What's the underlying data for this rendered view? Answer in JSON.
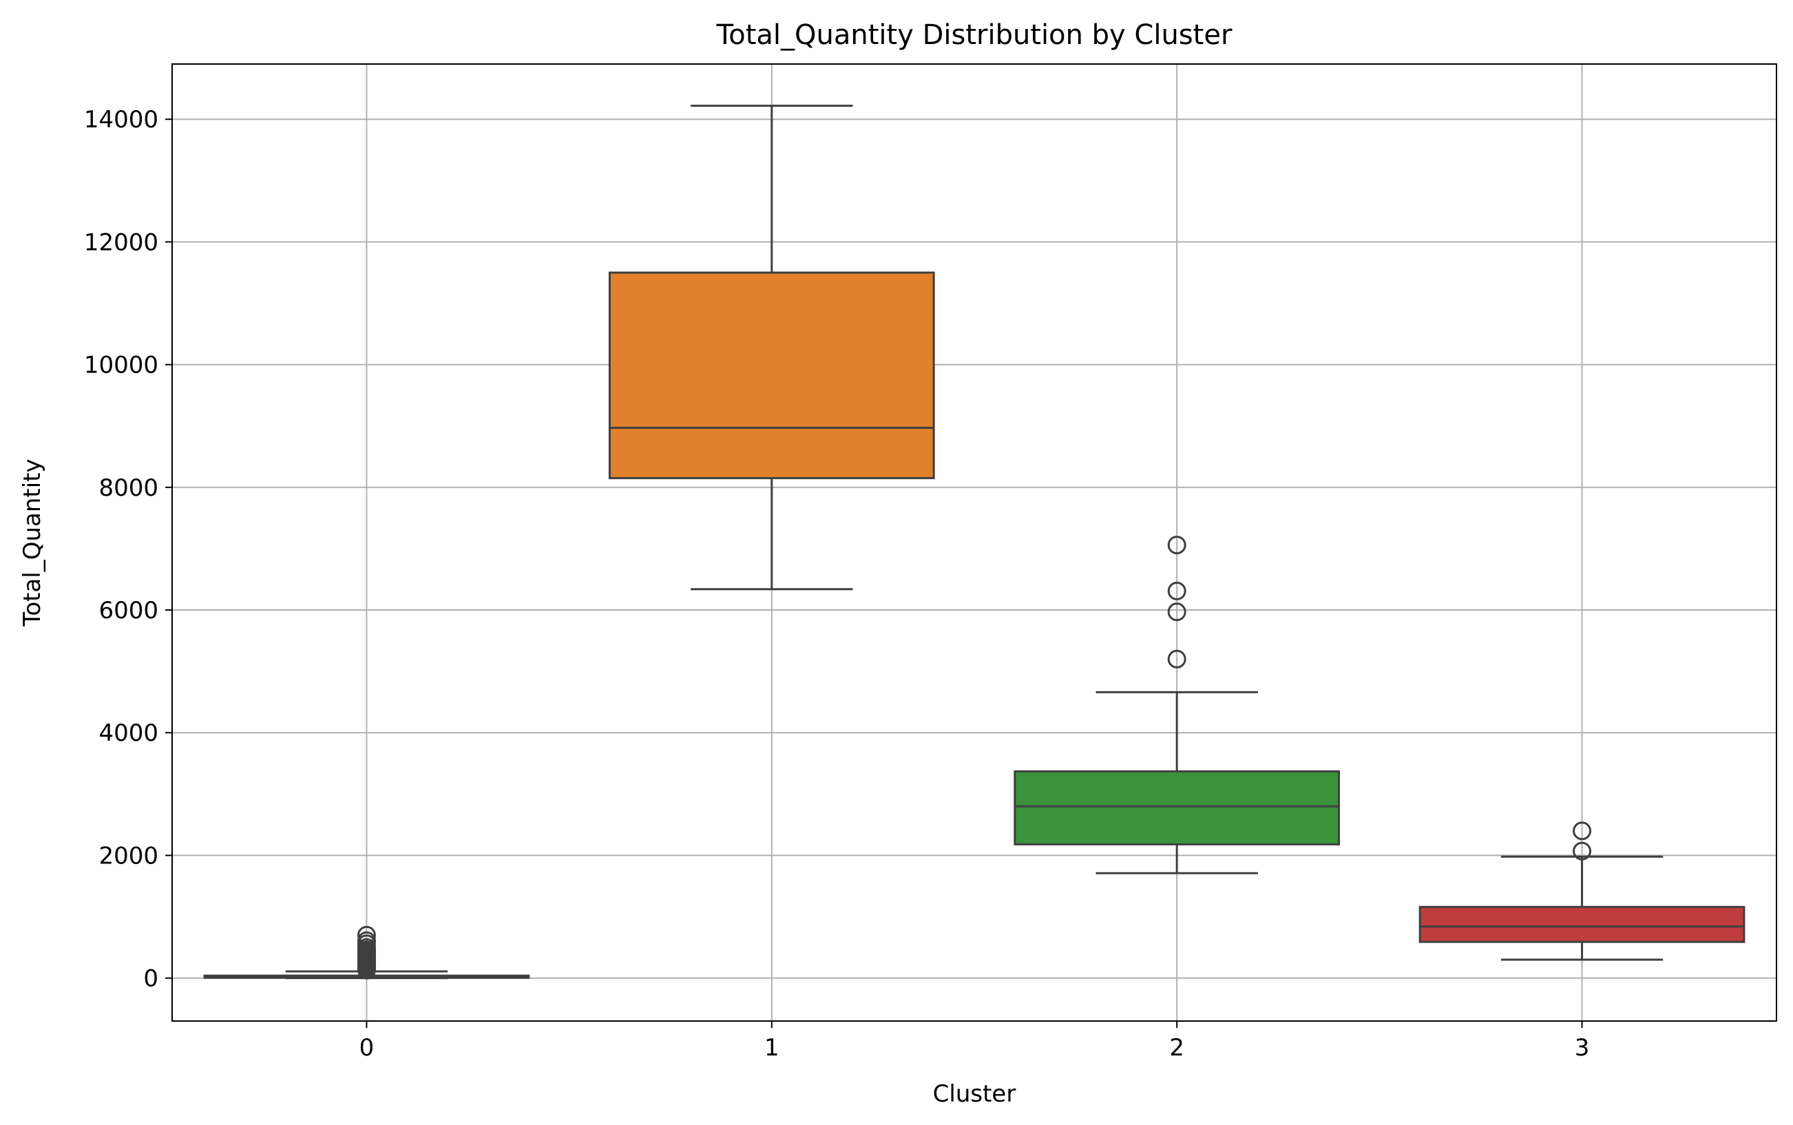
{
  "chart_data": {
    "type": "box",
    "title": "Total_Quantity Distribution by Cluster",
    "xlabel": "Cluster",
    "ylabel": "Total_Quantity",
    "ylim": [
      -700,
      14900
    ],
    "yticks": [
      0,
      2000,
      4000,
      6000,
      8000,
      10000,
      12000,
      14000
    ],
    "grid": true,
    "categories": [
      "0",
      "1",
      "2",
      "3"
    ],
    "boxes": [
      {
        "category": "0",
        "color": "#1f77b4",
        "whisker_low": 0,
        "q1": 5,
        "median": 15,
        "q3": 40,
        "whisker_high": 110,
        "outliers": [
          130,
          160,
          190,
          220,
          250,
          280,
          310,
          340,
          370,
          400,
          430,
          460,
          500,
          560,
          610,
          700
        ]
      },
      {
        "category": "1",
        "color": "#e1812c",
        "whisker_low": 6340,
        "q1": 8150,
        "median": 8970,
        "q3": 11500,
        "whisker_high": 14220,
        "outliers": []
      },
      {
        "category": "2",
        "color": "#3a923a",
        "whisker_low": 1710,
        "q1": 2180,
        "median": 2800,
        "q3": 3370,
        "whisker_high": 4660,
        "outliers": [
          5200,
          5970,
          6310,
          7060
        ]
      },
      {
        "category": "3",
        "color": "#c03d3e",
        "whisker_low": 300,
        "q1": 590,
        "median": 840,
        "q3": 1160,
        "whisker_high": 1980,
        "outliers": [
          2070,
          2400
        ]
      }
    ]
  }
}
